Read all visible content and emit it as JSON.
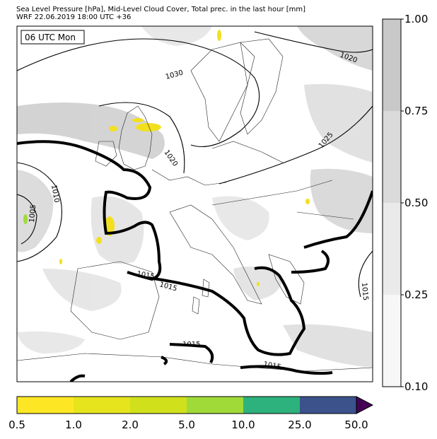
{
  "title_line1": "Sea Level Pressure [hPa], Mid-Level Cloud Cover, Total prec. in the last hour [mm]",
  "title_line2": "WRF 22.06.2019 18:00 UTC +36",
  "time_box": "06 UTC Mon",
  "isobar_labels": [
    {
      "text": "1030"
    },
    {
      "text": "1020"
    },
    {
      "text": "1020"
    },
    {
      "text": "1025"
    },
    {
      "text": "1010"
    },
    {
      "text": "1005"
    },
    {
      "text": "1015"
    },
    {
      "text": "1015"
    },
    {
      "text": "1015"
    },
    {
      "text": "1015"
    },
    {
      "text": "1015"
    }
  ],
  "cloud_cover_colorbar": {
    "ticks": [
      "1.00",
      "0.75",
      "0.50",
      "0.25",
      "0.10"
    ],
    "colors": [
      "#c8c8c8",
      "#dadada",
      "#eaeaea",
      "#f7f7f7"
    ]
  },
  "precip_colorbar": {
    "ticks": [
      "0.5",
      "1.0",
      "2.0",
      "5.0",
      "10.0",
      "25.0",
      "50.0"
    ],
    "colors": [
      "#fde725",
      "#e6e41d",
      "#d0e11c",
      "#a0da39",
      "#2db27d",
      "#3b528b",
      "#440154"
    ]
  }
}
